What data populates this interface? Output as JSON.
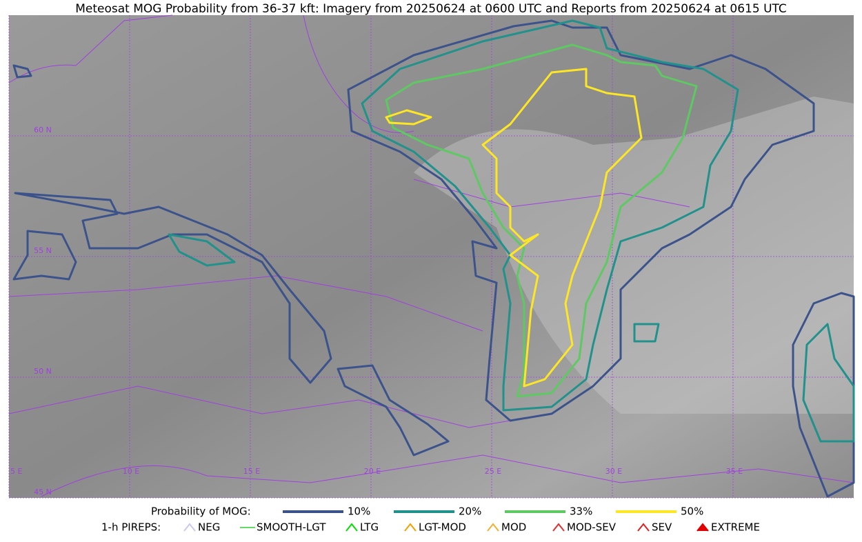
{
  "header": {
    "title": "Meteosat MOG Probability from 36-37 kft: Imagery from 20250624 at 0600 UTC and Reports from 20250624 at 0615 UTC"
  },
  "map": {
    "lon_labels": [
      "5 E",
      "10 E",
      "15 E",
      "20 E",
      "25 E",
      "30 E",
      "35 E"
    ],
    "lat_labels": [
      "60 N",
      "55 N",
      "50 N",
      "45 N"
    ]
  },
  "legend": {
    "title": "Probability of MOG:",
    "items": [
      {
        "label": "10%",
        "color": "#3b528b"
      },
      {
        "label": "20%",
        "color": "#21918c"
      },
      {
        "label": "33%",
        "color": "#5ec962"
      },
      {
        "label": "50%",
        "color": "#fde725"
      }
    ]
  },
  "pireps": {
    "title": "1-h PIREPS:",
    "items": [
      {
        "label": "NEG",
        "color": "#c8c8f0"
      },
      {
        "label": "SMOOTH-LGT",
        "color": "#32cd32"
      },
      {
        "label": "LTG",
        "color": "#00e000"
      },
      {
        "label": "LGT-MOD",
        "color": "#f0a000"
      },
      {
        "label": "MOD",
        "color": "#f0b030"
      },
      {
        "label": "MOD-SEV",
        "color": "#e03030"
      },
      {
        "label": "SEV",
        "color": "#e02020"
      },
      {
        "label": "EXTREME",
        "color": "#e00000"
      }
    ]
  }
}
